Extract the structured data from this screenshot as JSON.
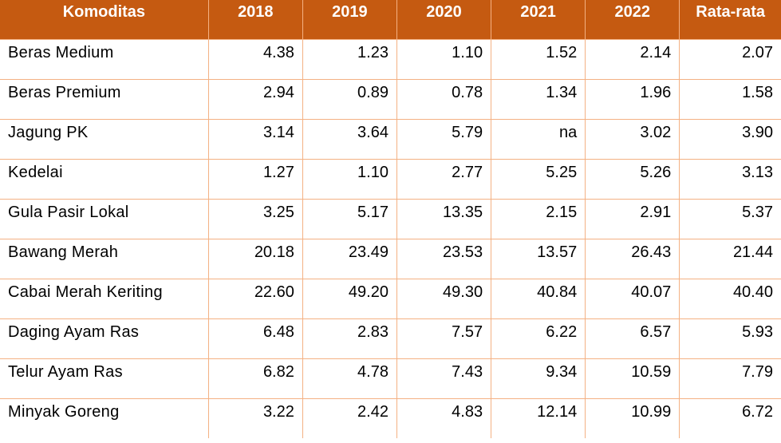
{
  "table": {
    "headers": [
      "Komoditas",
      "2018",
      "2019",
      "2020",
      "2021",
      "2022",
      "Rata-rata"
    ],
    "rows": [
      [
        "Beras Medium",
        "4.38",
        "1.23",
        "1.10",
        "1.52",
        "2.14",
        "2.07"
      ],
      [
        "Beras Premium",
        "2.94",
        "0.89",
        "0.78",
        "1.34",
        "1.96",
        "1.58"
      ],
      [
        "Jagung PK",
        "3.14",
        "3.64",
        "5.79",
        "na",
        "3.02",
        "3.90"
      ],
      [
        "Kedelai",
        "1.27",
        "1.10",
        "2.77",
        "5.25",
        "5.26",
        "3.13"
      ],
      [
        "Gula Pasir Lokal",
        "3.25",
        "5.17",
        "13.35",
        "2.15",
        "2.91",
        "5.37"
      ],
      [
        "Bawang Merah",
        "20.18",
        "23.49",
        "23.53",
        "13.57",
        "26.43",
        "21.44"
      ],
      [
        "Cabai Merah Keriting",
        "22.60",
        "49.20",
        "49.30",
        "40.84",
        "40.07",
        "40.40"
      ],
      [
        "Daging Ayam Ras",
        "6.48",
        "2.83",
        "7.57",
        "6.22",
        "6.57",
        "5.93"
      ],
      [
        "Telur Ayam Ras",
        "6.82",
        "4.78",
        "7.43",
        "9.34",
        "10.59",
        "7.79"
      ],
      [
        "Minyak Goreng",
        "3.22",
        "2.42",
        "4.83",
        "12.14",
        "10.99",
        "6.72"
      ]
    ]
  },
  "colors": {
    "header_bg": "#c55a11",
    "header_text": "#ffffff",
    "grid": "#f4b183"
  }
}
